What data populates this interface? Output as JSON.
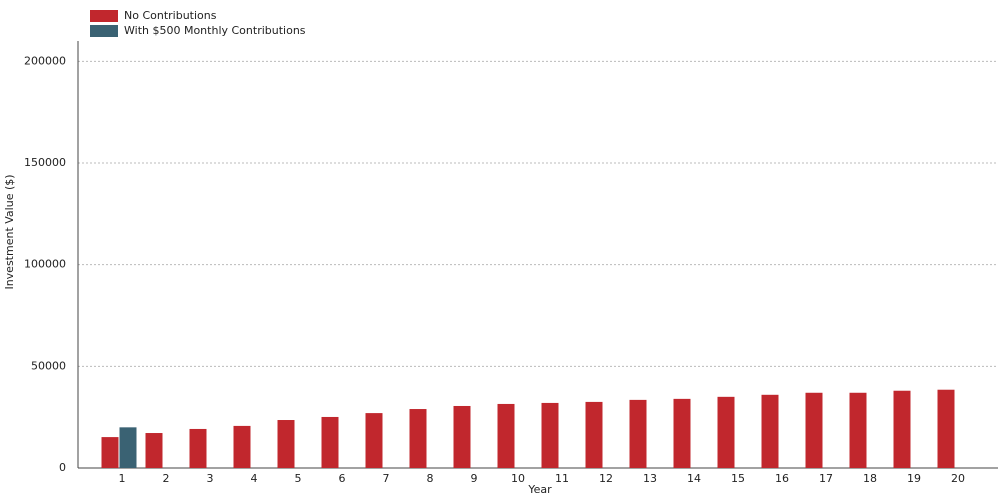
{
  "chart_data": {
    "type": "bar",
    "x_label": "Year",
    "y_label": "Investment Value ($)",
    "categories": [
      "1",
      "2",
      "3",
      "4",
      "5",
      "6",
      "7",
      "8",
      "9",
      "10",
      "11",
      "12",
      "13",
      "14",
      "15",
      "16",
      "17",
      "18",
      "19",
      "20"
    ],
    "series": [
      {
        "name": "No Contributions",
        "color": "#c1272d",
        "values": [
          15200,
          17200,
          19200,
          20700,
          23600,
          25100,
          27000,
          29000,
          30500,
          31500,
          32000,
          32500,
          33500,
          34000,
          35000,
          36000,
          37000,
          37000,
          38000,
          38500
        ]
      },
      {
        "name": "With $500 Monthly Contributions",
        "color": "#3a6273",
        "values": [
          20000,
          null,
          null,
          null,
          null,
          null,
          null,
          null,
          null,
          null,
          null,
          null,
          null,
          null,
          null,
          null,
          null,
          null,
          null,
          null
        ]
      }
    ],
    "ylim": [
      0,
      210000
    ],
    "yticks": [
      0,
      50000,
      100000,
      150000,
      200000
    ],
    "grid": true
  }
}
